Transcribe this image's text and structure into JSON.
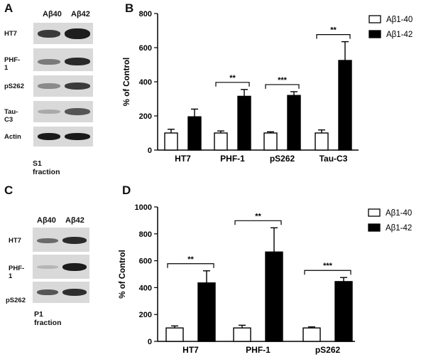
{
  "panels": {
    "a": "A",
    "b": "B",
    "c": "C",
    "d": "D"
  },
  "blot_a": {
    "lanes": [
      "Aβ40",
      "Aβ42"
    ],
    "rows": [
      "HT7",
      "PHF-1",
      "pS262",
      "Tau-C3",
      "Actin"
    ],
    "fraction": "S1 fraction"
  },
  "blot_c": {
    "lanes": [
      "Aβ40",
      "Aβ42"
    ],
    "rows": [
      "HT7",
      "PHF-1",
      "pS262"
    ],
    "fraction": "P1 fraction"
  },
  "chart_data": [
    {
      "type": "bar",
      "categories": [
        "HT7",
        "PHF-1",
        "pS262",
        "Tau-C3"
      ],
      "series": [
        {
          "name": "Aβ1-40",
          "values": [
            100,
            100,
            100,
            100
          ],
          "errors": [
            22,
            12,
            7,
            18
          ],
          "fill": "#ffffff"
        },
        {
          "name": "Aβ1-42",
          "values": [
            195,
            315,
            320,
            525
          ],
          "errors": [
            45,
            40,
            22,
            110
          ],
          "fill": "#000000"
        }
      ],
      "significance": [
        "",
        "**",
        "***",
        "**"
      ],
      "ylabel": "% of Control",
      "ylim": [
        0,
        800
      ],
      "yticks": [
        0,
        200,
        400,
        600,
        800
      ],
      "legend": "top-right"
    },
    {
      "type": "bar",
      "categories": [
        "HT7",
        "PHF-1",
        "pS262"
      ],
      "series": [
        {
          "name": "Aβ1-40",
          "values": [
            100,
            100,
            100
          ],
          "errors": [
            15,
            20,
            8
          ],
          "fill": "#ffffff"
        },
        {
          "name": "Aβ1-42",
          "values": [
            435,
            665,
            445
          ],
          "errors": [
            90,
            180,
            30
          ],
          "fill": "#000000"
        }
      ],
      "significance": [
        "**",
        "**",
        "***"
      ],
      "ylabel": "% of Control",
      "ylim": [
        0,
        1000
      ],
      "yticks": [
        0,
        200,
        400,
        600,
        800,
        1000
      ],
      "legend": "top-right"
    }
  ]
}
